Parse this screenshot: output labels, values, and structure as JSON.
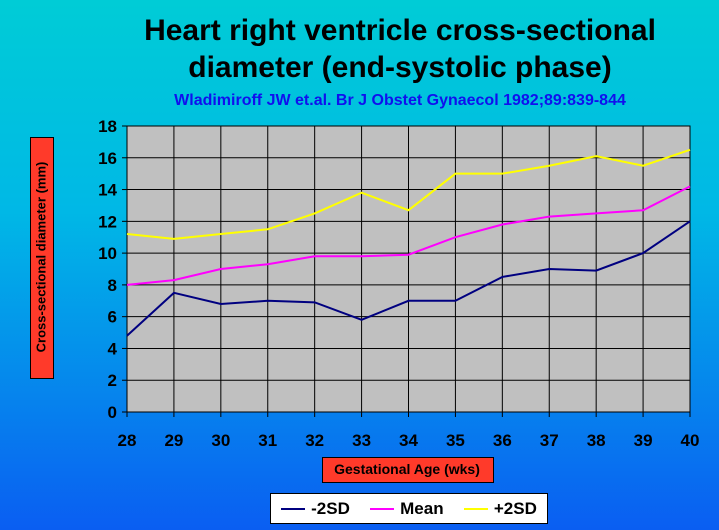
{
  "title": "Heart right ventricle cross-sectional\ndiameter (end-systolic phase)",
  "subtitle": "Wladimiroff JW et.al. Br J Obstet Gynaecol 1982;89:839-844",
  "chart_data": {
    "type": "line",
    "title": "Heart right ventricle cross-sectional diameter (end-systolic phase)",
    "subtitle": "Wladimiroff JW et.al. Br J Obstet Gynaecol 1982;89:839-844",
    "xlabel": "Gestational Age (wks)",
    "ylabel": "Cross-sectional diameter (mm)",
    "x": [
      28,
      29,
      30,
      31,
      32,
      33,
      34,
      35,
      36,
      37,
      38,
      39,
      40
    ],
    "ylim": [
      0,
      18
    ],
    "yticks": [
      0,
      2,
      4,
      6,
      8,
      10,
      12,
      14,
      16,
      18
    ],
    "grid": true,
    "legend_position": "bottom",
    "series": [
      {
        "name": "-2SD",
        "color": "#000080",
        "values": [
          4.8,
          7.5,
          6.8,
          7.0,
          6.9,
          5.8,
          7.0,
          7.0,
          8.5,
          9.0,
          8.9,
          10.0,
          12.0
        ]
      },
      {
        "name": "Mean",
        "color": "#ff00ff",
        "values": [
          8.0,
          8.3,
          9.0,
          9.3,
          9.8,
          9.8,
          9.9,
          11.0,
          11.8,
          12.3,
          12.5,
          12.7,
          14.2
        ]
      },
      {
        "name": "+2SD",
        "color": "#ffff00",
        "values": [
          11.2,
          10.9,
          11.2,
          11.5,
          12.5,
          13.8,
          12.7,
          15.0,
          15.0,
          15.5,
          16.1,
          15.5,
          16.5
        ]
      }
    ],
    "colors": {
      "plot_background": "#c0c0c0",
      "label_box": "#ff3a2a"
    }
  }
}
